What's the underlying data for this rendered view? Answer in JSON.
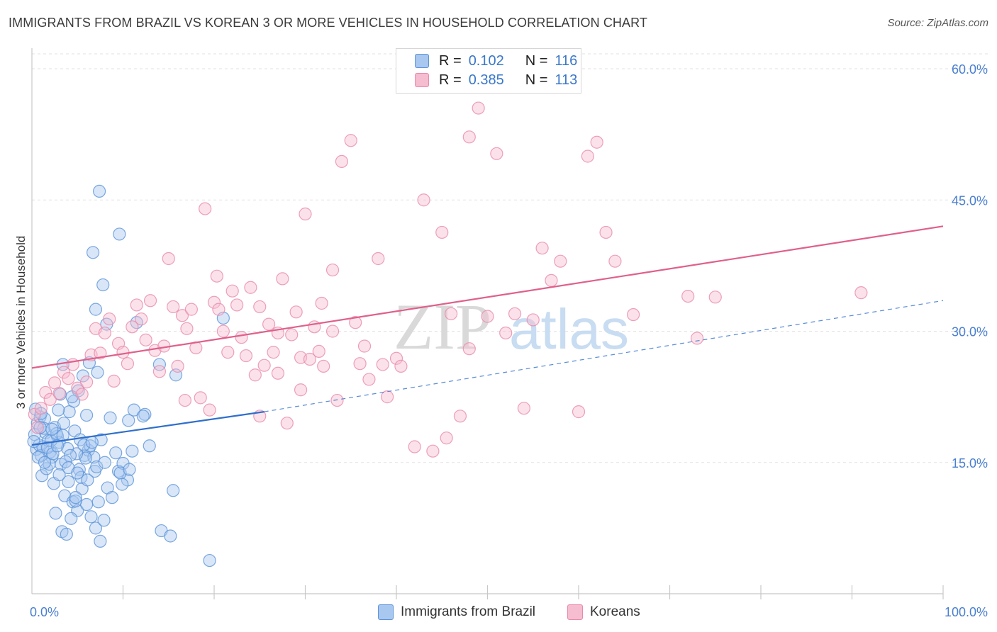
{
  "header": {
    "title": "IMMIGRANTS FROM BRAZIL VS KOREAN 3 OR MORE VEHICLES IN HOUSEHOLD CORRELATION CHART",
    "source": "Source: ZipAtlas.com"
  },
  "legend_top": {
    "rows": [
      {
        "r_label": "R =",
        "r_value": "0.102",
        "n_label": "N =",
        "n_value": "116"
      },
      {
        "r_label": "R =",
        "r_value": "0.385",
        "n_label": "N =",
        "n_value": "113"
      }
    ]
  },
  "legend_bottom": {
    "items": [
      {
        "label": "Immigrants from Brazil"
      },
      {
        "label": "Koreans"
      }
    ]
  },
  "colors": {
    "brazil_fill": "#a9c8f0",
    "brazil_stroke": "#5d93d8",
    "brazil_line": "#2f6fcc",
    "korean_fill": "#f6bcd0",
    "korean_stroke": "#e98aaa",
    "korean_line": "#e0608a",
    "axis_text": "#4a7fd0",
    "grid": "#e2e2e2"
  },
  "watermark": {
    "zip": "ZIP",
    "atlas": "atlas"
  },
  "chart_data": {
    "type": "scatter",
    "title": "IMMIGRANTS FROM BRAZIL VS KOREAN 3 OR MORE VEHICLES IN HOUSEHOLD CORRELATION CHART",
    "xlabel": "",
    "ylabel": "3 or more Vehicles in Household",
    "xlim": [
      0,
      100
    ],
    "ylim": [
      0,
      62
    ],
    "x_tick_labels": [
      "0.0%",
      "100.0%"
    ],
    "y_ticks": [
      15,
      30,
      45,
      60
    ],
    "y_tick_labels": [
      "15.0%",
      "30.0%",
      "45.0%",
      "60.0%"
    ],
    "grid": true,
    "series": [
      {
        "name": "Immigrants from Brazil",
        "r": 0.102,
        "n": 116,
        "trend": {
          "x0": 0,
          "y0": 17.0,
          "x1": 25.5,
          "y1": 20.8,
          "solid_until": 25.5,
          "dashed_x1": 100,
          "dashed_y1": 33.5
        },
        "points": [
          [
            0.3,
            18.2
          ],
          [
            0.5,
            16.5
          ],
          [
            0.8,
            17.0
          ],
          [
            1.0,
            15.8
          ],
          [
            1.2,
            16.8
          ],
          [
            0.6,
            19.5
          ],
          [
            0.9,
            20.2
          ],
          [
            1.5,
            18.4
          ],
          [
            1.8,
            17.5
          ],
          [
            2.0,
            16.2
          ],
          [
            2.2,
            15.6
          ],
          [
            2.5,
            19.0
          ],
          [
            2.8,
            18.0
          ],
          [
            3.0,
            17.3
          ],
          [
            1.1,
            13.5
          ],
          [
            1.6,
            14.3
          ],
          [
            2.4,
            12.6
          ],
          [
            3.2,
            14.8
          ],
          [
            3.6,
            11.2
          ],
          [
            4.0,
            12.8
          ],
          [
            4.5,
            10.5
          ],
          [
            5.0,
            9.5
          ],
          [
            5.5,
            12.0
          ],
          [
            6.0,
            10.2
          ],
          [
            6.5,
            8.8
          ],
          [
            7.0,
            7.5
          ],
          [
            7.5,
            6.0
          ],
          [
            2.6,
            9.2
          ],
          [
            3.3,
            7.1
          ],
          [
            3.8,
            6.8
          ],
          [
            4.3,
            8.6
          ],
          [
            4.8,
            10.6
          ],
          [
            5.2,
            14.2
          ],
          [
            5.8,
            15.8
          ],
          [
            6.2,
            16.4
          ],
          [
            6.8,
            15.6
          ],
          [
            3.5,
            19.5
          ],
          [
            4.1,
            20.8
          ],
          [
            4.6,
            22.0
          ],
          [
            5.1,
            23.2
          ],
          [
            5.6,
            24.9
          ],
          [
            6.3,
            26.4
          ],
          [
            7.2,
            25.3
          ],
          [
            3.4,
            26.2
          ],
          [
            4.4,
            22.5
          ],
          [
            7.0,
            32.5
          ],
          [
            7.8,
            35.3
          ],
          [
            8.2,
            30.8
          ],
          [
            9.6,
            41.1
          ],
          [
            7.4,
            46.0
          ],
          [
            6.7,
            39.0
          ],
          [
            11.5,
            31.0
          ],
          [
            10.6,
            19.8
          ],
          [
            11.2,
            21.0
          ],
          [
            12.4,
            20.5
          ],
          [
            12.9,
            16.9
          ],
          [
            14.0,
            26.2
          ],
          [
            15.8,
            25.0
          ],
          [
            15.5,
            11.8
          ],
          [
            14.2,
            7.2
          ],
          [
            15.2,
            6.6
          ],
          [
            19.5,
            3.8
          ],
          [
            21.0,
            31.5
          ],
          [
            1.4,
            20.0
          ],
          [
            2.9,
            21.0
          ],
          [
            3.1,
            22.8
          ],
          [
            4.7,
            18.6
          ],
          [
            5.3,
            17.6
          ],
          [
            6.4,
            16.9
          ],
          [
            7.6,
            17.6
          ],
          [
            8.6,
            20.1
          ],
          [
            9.5,
            14.0
          ],
          [
            10.0,
            14.9
          ],
          [
            10.5,
            13.0
          ],
          [
            11.0,
            16.3
          ],
          [
            9.7,
            13.8
          ],
          [
            8.3,
            12.1
          ],
          [
            9.2,
            16.1
          ],
          [
            10.7,
            14.2
          ],
          [
            12.2,
            20.3
          ],
          [
            6.9,
            14.0
          ],
          [
            5.9,
            15.5
          ],
          [
            7.3,
            10.5
          ],
          [
            4.9,
            16.0
          ],
          [
            2.1,
            17.5
          ],
          [
            1.7,
            16.7
          ],
          [
            0.4,
            21.1
          ],
          [
            1.3,
            18.9
          ],
          [
            2.7,
            18.3
          ],
          [
            3.9,
            16.6
          ],
          [
            4.2,
            15.8
          ],
          [
            5.7,
            17.0
          ],
          [
            6.6,
            17.3
          ],
          [
            7.9,
            8.4
          ],
          [
            8.8,
            11.0
          ],
          [
            0.7,
            15.6
          ],
          [
            1.9,
            14.8
          ],
          [
            2.3,
            16.0
          ],
          [
            3.7,
            15.1
          ],
          [
            4.8,
            11.0
          ],
          [
            5.4,
            13.3
          ],
          [
            6.1,
            13.0
          ],
          [
            7.1,
            14.5
          ],
          [
            2.2,
            18.8
          ],
          [
            1.0,
            20.6
          ],
          [
            0.2,
            17.4
          ],
          [
            3.0,
            13.6
          ],
          [
            4.0,
            14.4
          ],
          [
            5.0,
            13.8
          ],
          [
            8.0,
            15.0
          ],
          [
            2.8,
            16.9
          ],
          [
            1.4,
            15.0
          ],
          [
            3.4,
            18.1
          ],
          [
            6.0,
            20.4
          ],
          [
            9.9,
            12.5
          ],
          [
            0.9,
            19.0
          ]
        ]
      },
      {
        "name": "Koreans",
        "r": 0.385,
        "n": 113,
        "trend": {
          "x0": 0,
          "y0": 25.8,
          "x1": 100,
          "y1": 42.0
        },
        "points": [
          [
            0.3,
            20.5
          ],
          [
            0.6,
            19.0
          ],
          [
            1.0,
            21.2
          ],
          [
            1.5,
            23.0
          ],
          [
            2.0,
            22.2
          ],
          [
            2.5,
            24.1
          ],
          [
            3.0,
            22.9
          ],
          [
            3.5,
            25.3
          ],
          [
            4.0,
            24.6
          ],
          [
            4.5,
            26.2
          ],
          [
            5.0,
            23.5
          ],
          [
            5.5,
            22.8
          ],
          [
            6.0,
            24.2
          ],
          [
            6.5,
            27.3
          ],
          [
            7.0,
            30.3
          ],
          [
            7.5,
            27.5
          ],
          [
            8.0,
            29.8
          ],
          [
            8.5,
            31.4
          ],
          [
            9.0,
            24.3
          ],
          [
            9.5,
            28.6
          ],
          [
            10.0,
            27.6
          ],
          [
            10.5,
            26.3
          ],
          [
            11.0,
            30.5
          ],
          [
            11.5,
            33.0
          ],
          [
            12.0,
            31.4
          ],
          [
            12.5,
            29.0
          ],
          [
            13.0,
            33.5
          ],
          [
            13.5,
            27.8
          ],
          [
            14.0,
            25.4
          ],
          [
            14.5,
            28.3
          ],
          [
            15.0,
            38.3
          ],
          [
            15.5,
            32.8
          ],
          [
            16.0,
            26.0
          ],
          [
            16.5,
            31.8
          ],
          [
            17.0,
            30.3
          ],
          [
            17.5,
            32.5
          ],
          [
            18.0,
            28.1
          ],
          [
            18.5,
            22.4
          ],
          [
            19.0,
            44.0
          ],
          [
            19.5,
            21.0
          ],
          [
            20.0,
            33.3
          ],
          [
            20.5,
            32.5
          ],
          [
            21.0,
            30.0
          ],
          [
            21.5,
            27.6
          ],
          [
            22.0,
            34.6
          ],
          [
            22.5,
            33.0
          ],
          [
            23.0,
            29.3
          ],
          [
            23.5,
            27.2
          ],
          [
            24.0,
            35.0
          ],
          [
            24.5,
            25.0
          ],
          [
            25.0,
            20.3
          ],
          [
            25.5,
            26.1
          ],
          [
            26.0,
            30.8
          ],
          [
            26.5,
            27.6
          ],
          [
            27.0,
            29.8
          ],
          [
            27.5,
            36.0
          ],
          [
            28.0,
            19.5
          ],
          [
            28.5,
            29.6
          ],
          [
            29.0,
            32.2
          ],
          [
            29.5,
            27.0
          ],
          [
            30.0,
            43.4
          ],
          [
            30.5,
            26.8
          ],
          [
            31.0,
            30.5
          ],
          [
            31.5,
            27.7
          ],
          [
            32.0,
            26.0
          ],
          [
            33.0,
            37.0
          ],
          [
            33.5,
            22.1
          ],
          [
            34.0,
            49.4
          ],
          [
            35.0,
            51.8
          ],
          [
            36.0,
            26.3
          ],
          [
            37.0,
            24.5
          ],
          [
            38.0,
            38.3
          ],
          [
            39.0,
            22.5
          ],
          [
            40.0,
            26.9
          ],
          [
            42.0,
            16.8
          ],
          [
            43.0,
            45.0
          ],
          [
            44.0,
            16.3
          ],
          [
            45.0,
            41.3
          ],
          [
            46.0,
            32.0
          ],
          [
            47.0,
            20.3
          ],
          [
            48.0,
            52.2
          ],
          [
            49.0,
            55.5
          ],
          [
            50.0,
            31.7
          ],
          [
            51.0,
            50.3
          ],
          [
            52.0,
            29.8
          ],
          [
            53.0,
            32.0
          ],
          [
            54.0,
            21.2
          ],
          [
            55.0,
            31.3
          ],
          [
            56.0,
            39.5
          ],
          [
            57.0,
            35.8
          ],
          [
            58.0,
            38.0
          ],
          [
            60.0,
            20.8
          ],
          [
            61.0,
            50.0
          ],
          [
            62.0,
            51.6
          ],
          [
            63.0,
            41.3
          ],
          [
            64.0,
            38.0
          ],
          [
            66.0,
            31.9
          ],
          [
            72.0,
            34.0
          ],
          [
            73.0,
            29.2
          ],
          [
            75.0,
            33.9
          ],
          [
            91.0,
            34.4
          ],
          [
            25.0,
            32.8
          ],
          [
            33.0,
            30.0
          ],
          [
            36.5,
            28.3
          ],
          [
            38.5,
            26.2
          ],
          [
            35.5,
            31.0
          ],
          [
            27.0,
            25.2
          ],
          [
            29.5,
            23.3
          ],
          [
            31.8,
            33.2
          ],
          [
            20.3,
            36.3
          ],
          [
            16.8,
            22.1
          ],
          [
            40.5,
            26.0
          ],
          [
            45.5,
            17.8
          ],
          [
            48.0,
            28.0
          ]
        ]
      }
    ]
  }
}
